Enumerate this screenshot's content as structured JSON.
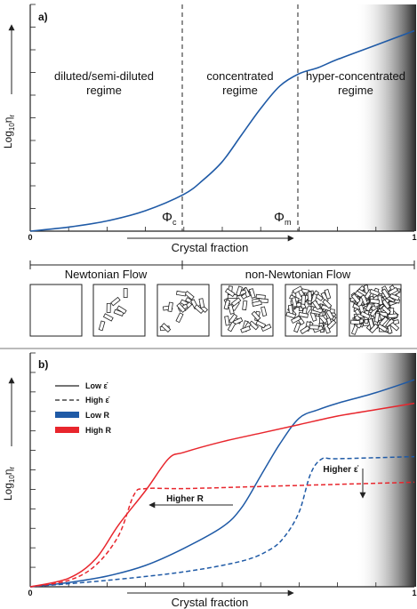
{
  "colors": {
    "blue": "#1f5aa6",
    "red": "#e8262d",
    "axis": "#222222",
    "shade_dark": "#2b2b2b",
    "shade_light": "#ffffff"
  },
  "panel_a": {
    "label": "a)",
    "ylabel_main": "Log",
    "ylabel_sub": "10",
    "ylabel_eta": "η",
    "ylabel_eta_sub": "r",
    "xlabel": "Crystal fraction",
    "x_start": "0",
    "x_end": "1",
    "regimes": {
      "dilute_line1": "diluted/semi-diluted",
      "dilute_line2": "regime",
      "conc_line1": "concentrated",
      "conc_line2": "regime",
      "hyper_line1": "hyper-concentrated",
      "hyper_line2": "regime"
    },
    "phi_c": "Φ",
    "phi_c_sub": "c",
    "phi_m": "Φ",
    "phi_m_sub": "m",
    "flow_newtonian": "Newtonian Flow",
    "flow_non_newtonian": "non-Newtonian Flow"
  },
  "panel_b": {
    "label": "b)",
    "ylabel_main": "Log",
    "ylabel_sub": "10",
    "ylabel_eta": "η",
    "ylabel_eta_sub": "r",
    "xlabel": "Crystal fraction",
    "x_start": "0",
    "x_end": "1",
    "legend": {
      "low_strain": "Low ε̇",
      "high_strain": "High ε̇",
      "low_r": "Low R",
      "high_r": "High R"
    },
    "annotation_higher_r": "Higher R",
    "annotation_higher_strain": "Higher ε̇"
  },
  "chart_data": [
    {
      "type": "line",
      "panel": "a",
      "xlabel": "Crystal fraction",
      "ylabel": "Log10 ηr",
      "xlim": [
        0,
        1
      ],
      "series": [
        {
          "x": [
            0,
            0.1,
            0.2,
            0.3,
            0.4,
            0.45,
            0.5,
            0.55,
            0.6,
            0.65,
            0.7,
            0.75,
            0.8,
            0.9,
            1.0
          ],
          "y": [
            0.0,
            0.02,
            0.05,
            0.1,
            0.18,
            0.25,
            0.34,
            0.47,
            0.6,
            0.71,
            0.77,
            0.8,
            0.84,
            0.91,
            0.98
          ]
        }
      ],
      "vlines": [
        0.4,
        0.7
      ]
    },
    {
      "type": "line",
      "panel": "b",
      "xlabel": "Crystal fraction",
      "ylabel": "Log10 ηr",
      "xlim": [
        0,
        1
      ],
      "series": [
        {
          "name": "Low R, Low ε̇",
          "color": "#1f5aa6",
          "dash": false,
          "x": [
            0,
            0.1,
            0.2,
            0.3,
            0.4,
            0.5,
            0.55,
            0.6,
            0.65,
            0.7,
            0.75,
            0.8,
            0.9,
            1.0
          ],
          "y": [
            0.0,
            0.02,
            0.05,
            0.1,
            0.18,
            0.28,
            0.37,
            0.52,
            0.67,
            0.79,
            0.83,
            0.86,
            0.91,
            0.97
          ]
        },
        {
          "name": "Low R, High ε̇",
          "color": "#1f5aa6",
          "dash": true,
          "x": [
            0,
            0.2,
            0.4,
            0.55,
            0.62,
            0.66,
            0.7,
            0.73,
            0.76,
            0.8,
            1.0
          ],
          "y": [
            0.0,
            0.03,
            0.07,
            0.12,
            0.17,
            0.23,
            0.35,
            0.53,
            0.6,
            0.6,
            0.61
          ]
        },
        {
          "name": "High R, Low ε̇",
          "color": "#e8262d",
          "dash": false,
          "x": [
            0,
            0.1,
            0.17,
            0.23,
            0.3,
            0.36,
            0.4,
            0.5,
            0.6,
            0.7,
            0.8,
            0.9,
            1.0
          ],
          "y": [
            0.0,
            0.04,
            0.13,
            0.29,
            0.45,
            0.6,
            0.63,
            0.68,
            0.72,
            0.76,
            0.8,
            0.83,
            0.86
          ]
        },
        {
          "name": "High R, High ε̇",
          "color": "#e8262d",
          "dash": true,
          "x": [
            0,
            0.1,
            0.17,
            0.23,
            0.27,
            0.3,
            0.4,
            0.6,
            0.8,
            1.0
          ],
          "y": [
            0.0,
            0.03,
            0.1,
            0.24,
            0.43,
            0.46,
            0.46,
            0.47,
            0.48,
            0.49
          ]
        }
      ]
    }
  ]
}
